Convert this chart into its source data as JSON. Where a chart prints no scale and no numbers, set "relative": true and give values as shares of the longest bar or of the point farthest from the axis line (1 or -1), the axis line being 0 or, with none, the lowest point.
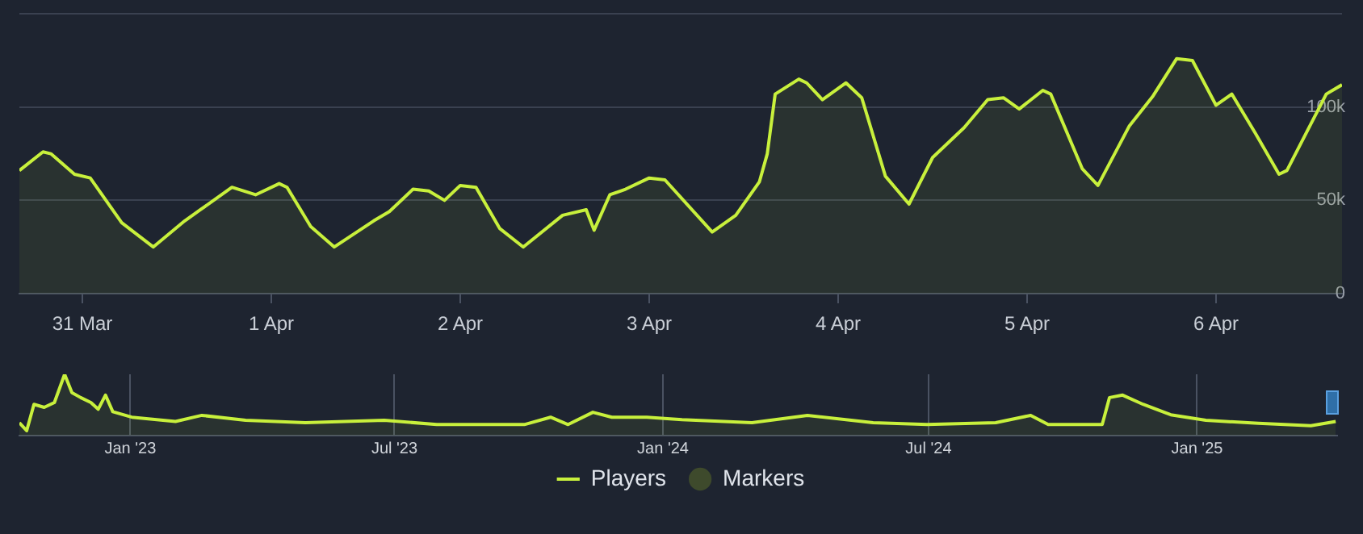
{
  "chart_data": [
    {
      "type": "area",
      "x": [
        "2025-03-30T16:00",
        "2025-03-30T19:00",
        "2025-03-30T20:00",
        "2025-03-30T23:00",
        "2025-03-31T01:00",
        "2025-03-31T05:00",
        "2025-03-31T09:00",
        "2025-03-31T13:00",
        "2025-03-31T15:00",
        "2025-03-31T19:00",
        "2025-03-31T22:00",
        "2025-04-01T01:00",
        "2025-04-01T02:00",
        "2025-04-01T05:00",
        "2025-04-01T08:00",
        "2025-04-01T13:00",
        "2025-04-01T15:00",
        "2025-04-01T18:00",
        "2025-04-01T20:00",
        "2025-04-01T22:00",
        "2025-04-02T00:00",
        "2025-04-02T02:00",
        "2025-04-02T05:00",
        "2025-04-02T08:00",
        "2025-04-02T13:00",
        "2025-04-02T16:00",
        "2025-04-02T17:00",
        "2025-04-02T19:00",
        "2025-04-02T21:00",
        "2025-04-03T00:00",
        "2025-04-03T02:00",
        "2025-04-03T08:00",
        "2025-04-03T11:00",
        "2025-04-03T14:00",
        "2025-04-03T15:00",
        "2025-04-03T16:00",
        "2025-04-03T19:00",
        "2025-04-03T20:00",
        "2025-04-03T22:00",
        "2025-04-04T01:00",
        "2025-04-04T03:00",
        "2025-04-04T06:00",
        "2025-04-04T09:00",
        "2025-04-04T12:00",
        "2025-04-04T16:00",
        "2025-04-04T19:00",
        "2025-04-04T21:00",
        "2025-04-04T23:00",
        "2025-04-05T02:00",
        "2025-04-05T03:00",
        "2025-04-05T07:00",
        "2025-04-05T09:00",
        "2025-04-05T13:00",
        "2025-04-05T16:00",
        "2025-04-05T19:00",
        "2025-04-05T21:00",
        "2025-04-06T00:00",
        "2025-04-06T02:00",
        "2025-04-06T05:00",
        "2025-04-06T08:00",
        "2025-04-06T09:00",
        "2025-04-06T14:00",
        "2025-04-06T16:00"
      ],
      "series": [
        {
          "name": "Players",
          "color": "#c8f03c",
          "values": [
            66000,
            76000,
            75000,
            64000,
            62000,
            38000,
            25000,
            39000,
            45000,
            57000,
            53000,
            59000,
            57000,
            36000,
            25000,
            39000,
            44000,
            56000,
            55000,
            50000,
            58000,
            57000,
            35000,
            25000,
            42000,
            45000,
            34000,
            53000,
            56000,
            62000,
            61000,
            33000,
            42000,
            60000,
            75000,
            107000,
            115000,
            113000,
            104000,
            113000,
            105000,
            63000,
            48000,
            73000,
            89000,
            104000,
            105000,
            99000,
            109000,
            107000,
            67000,
            58000,
            90000,
            106000,
            126000,
            125000,
            101000,
            107000,
            86000,
            64000,
            66000,
            107000,
            112000
          ]
        },
        {
          "name": "Markers",
          "type": "scatter",
          "color": "#3e4a2c",
          "values": [
            null,
            null,
            null,
            null,
            null,
            null,
            null,
            null,
            null,
            null,
            null,
            null,
            null,
            null,
            null,
            null,
            null,
            null,
            null,
            null,
            null,
            null,
            null,
            null,
            null,
            null,
            null,
            null,
            null,
            null,
            null,
            null,
            null,
            null,
            null,
            null,
            null,
            null,
            null,
            null,
            null,
            null,
            null,
            null,
            null,
            null,
            null,
            null,
            null,
            null,
            null,
            null,
            null,
            null,
            null,
            null,
            null,
            null,
            null,
            null,
            null,
            null,
            null
          ]
        }
      ],
      "xlim": [
        "2025-03-30T16:00",
        "2025-04-06T16:00"
      ],
      "xticks": [
        {
          "value": "2025-03-31",
          "label": "31 Mar"
        },
        {
          "value": "2025-04-01",
          "label": "1 Apr"
        },
        {
          "value": "2025-04-02",
          "label": "2 Apr"
        },
        {
          "value": "2025-04-03",
          "label": "3 Apr"
        },
        {
          "value": "2025-04-04",
          "label": "4 Apr"
        },
        {
          "value": "2025-04-05",
          "label": "5 Apr"
        },
        {
          "value": "2025-04-06",
          "label": "6 Apr"
        }
      ],
      "ylim": [
        0,
        150000
      ],
      "yticks": [
        0,
        {
          "value": 50000,
          "label": "50k"
        },
        {
          "value": 100000,
          "label": "100k"
        },
        {
          "value": 150000,
          "label": null
        }
      ],
      "grid": "y",
      "legend": "bottom"
    },
    {
      "type": "area",
      "relative": true,
      "x": [
        "2022-10-17",
        "2022-10-22",
        "2022-10-27",
        "2022-11-03",
        "2022-11-10",
        "2022-11-17",
        "2022-11-22",
        "2022-11-28",
        "2022-12-05",
        "2022-12-10",
        "2022-12-15",
        "2022-12-20",
        "2023-01-02",
        "2023-02-01",
        "2023-02-19",
        "2023-03-21",
        "2023-05-01",
        "2023-06-24",
        "2023-07-30",
        "2023-09-28",
        "2023-10-16",
        "2023-10-28",
        "2023-11-14",
        "2023-11-27",
        "2023-12-21",
        "2024-01-14",
        "2024-03-02",
        "2024-04-09",
        "2024-05-24",
        "2024-06-30",
        "2024-08-16",
        "2024-09-09",
        "2024-09-21",
        "2024-10-28",
        "2024-11-02",
        "2024-11-11",
        "2024-11-25",
        "2024-12-14",
        "2025-01-07",
        "2025-02-12",
        "2025-03-20",
        "2025-04-06"
      ],
      "series": [
        {
          "color": "#c8f03c",
          "values": [
            0.21,
            0.08,
            0.51,
            0.46,
            0.54,
            1,
            0.7,
            0.62,
            0.54,
            0.43,
            0.66,
            0.39,
            0.3,
            0.23,
            0.33,
            0.25,
            0.21,
            0.25,
            0.18,
            0.18,
            0.3,
            0.18,
            0.38,
            0.3,
            0.3,
            0.26,
            0.21,
            0.33,
            0.21,
            0.18,
            0.21,
            0.33,
            0.18,
            0.18,
            0.62,
            0.66,
            0.51,
            0.34,
            0.25,
            0.2,
            0.16,
            0.23
          ]
        }
      ],
      "xlim": [
        "2022-10-17",
        "2025-04-07"
      ],
      "xticks": [
        {
          "value": "2023-01-01",
          "label": "Jan '23"
        },
        {
          "value": "2023-07-01",
          "label": "Jul '23"
        },
        {
          "value": "2024-01-01",
          "label": "Jan '24"
        },
        {
          "value": "2024-07-01",
          "label": "Jul '24"
        },
        {
          "value": "2025-01-01",
          "label": "Jan '25"
        }
      ],
      "grid": "x",
      "tick_labels": "x"
    }
  ]
}
